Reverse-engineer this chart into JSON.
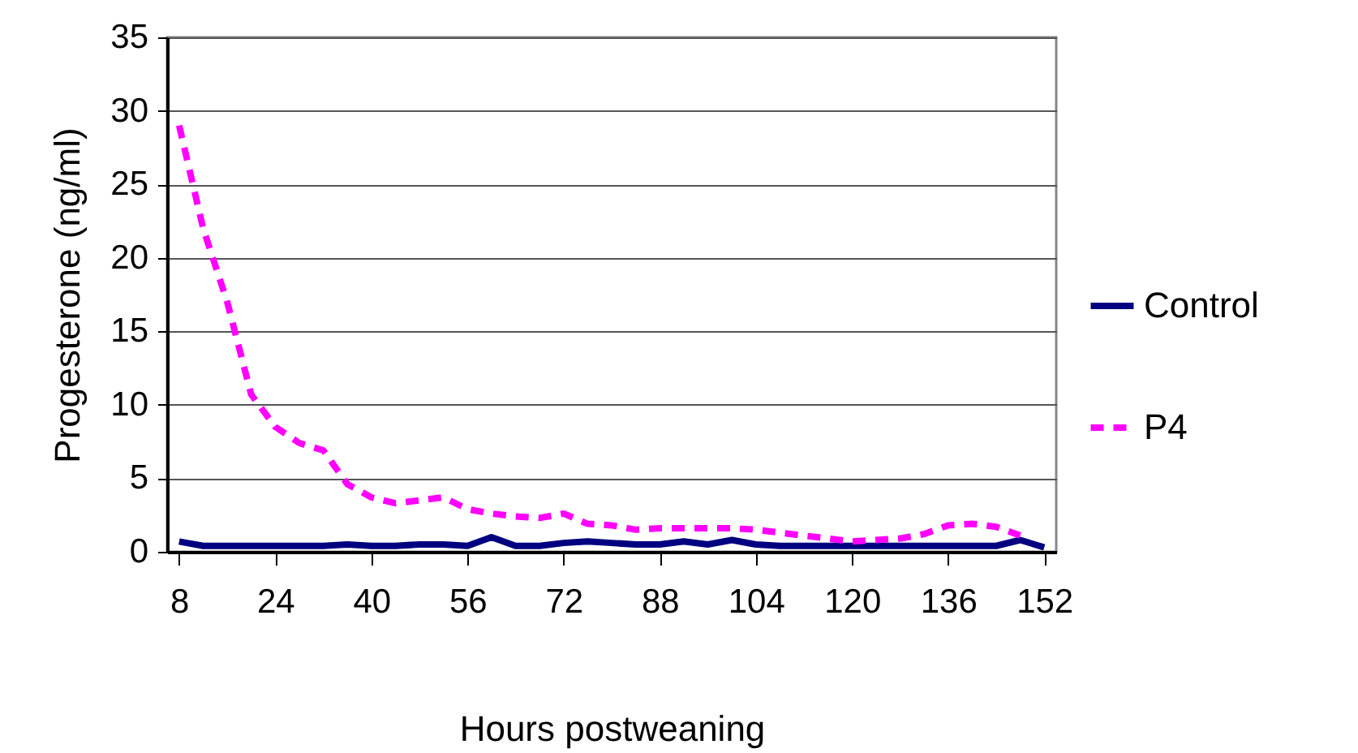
{
  "chart_data": {
    "type": "line",
    "xlabel": "Hours postweaning",
    "ylabel": "Progesterone (ng/ml)",
    "x": [
      8,
      12,
      16,
      20,
      24,
      28,
      32,
      36,
      40,
      44,
      48,
      52,
      56,
      60,
      64,
      68,
      72,
      76,
      80,
      84,
      88,
      92,
      96,
      100,
      104,
      108,
      112,
      116,
      120,
      124,
      128,
      132,
      136,
      140,
      144,
      148,
      152
    ],
    "series": [
      {
        "name": "Control",
        "color": "#000080",
        "line_style": "solid",
        "values": [
          0.7,
          0.4,
          0.4,
          0.4,
          0.4,
          0.4,
          0.4,
          0.5,
          0.4,
          0.4,
          0.5,
          0.5,
          0.4,
          1.0,
          0.4,
          0.4,
          0.6,
          0.7,
          0.6,
          0.5,
          0.5,
          0.7,
          0.5,
          0.8,
          0.5,
          0.4,
          0.4,
          0.4,
          0.4,
          0.4,
          0.4,
          0.4,
          0.4,
          0.4,
          0.4,
          0.8,
          0.3
        ]
      },
      {
        "name": "P4",
        "color": "#ff00ff",
        "line_style": "dashed",
        "values": [
          29,
          22,
          17,
          10.7,
          8.5,
          7.4,
          6.9,
          4.6,
          3.7,
          3.3,
          3.5,
          3.7,
          2.9,
          2.6,
          2.4,
          2.3,
          2.6,
          1.9,
          1.8,
          1.5,
          1.6,
          1.6,
          1.6,
          1.6,
          1.5,
          1.3,
          1.1,
          0.9,
          0.7,
          0.8,
          0.9,
          1.2,
          1.8,
          1.9,
          1.7,
          1.1,
          null
        ]
      }
    ],
    "xlim": [
      6,
      154
    ],
    "xticks": [
      8,
      24,
      40,
      56,
      72,
      88,
      104,
      120,
      136,
      152
    ],
    "ylim": [
      0,
      35
    ],
    "yticks": [
      0,
      5,
      10,
      15,
      20,
      25,
      30,
      35
    ],
    "grid": "y",
    "legend": "right",
    "marker": "none"
  }
}
